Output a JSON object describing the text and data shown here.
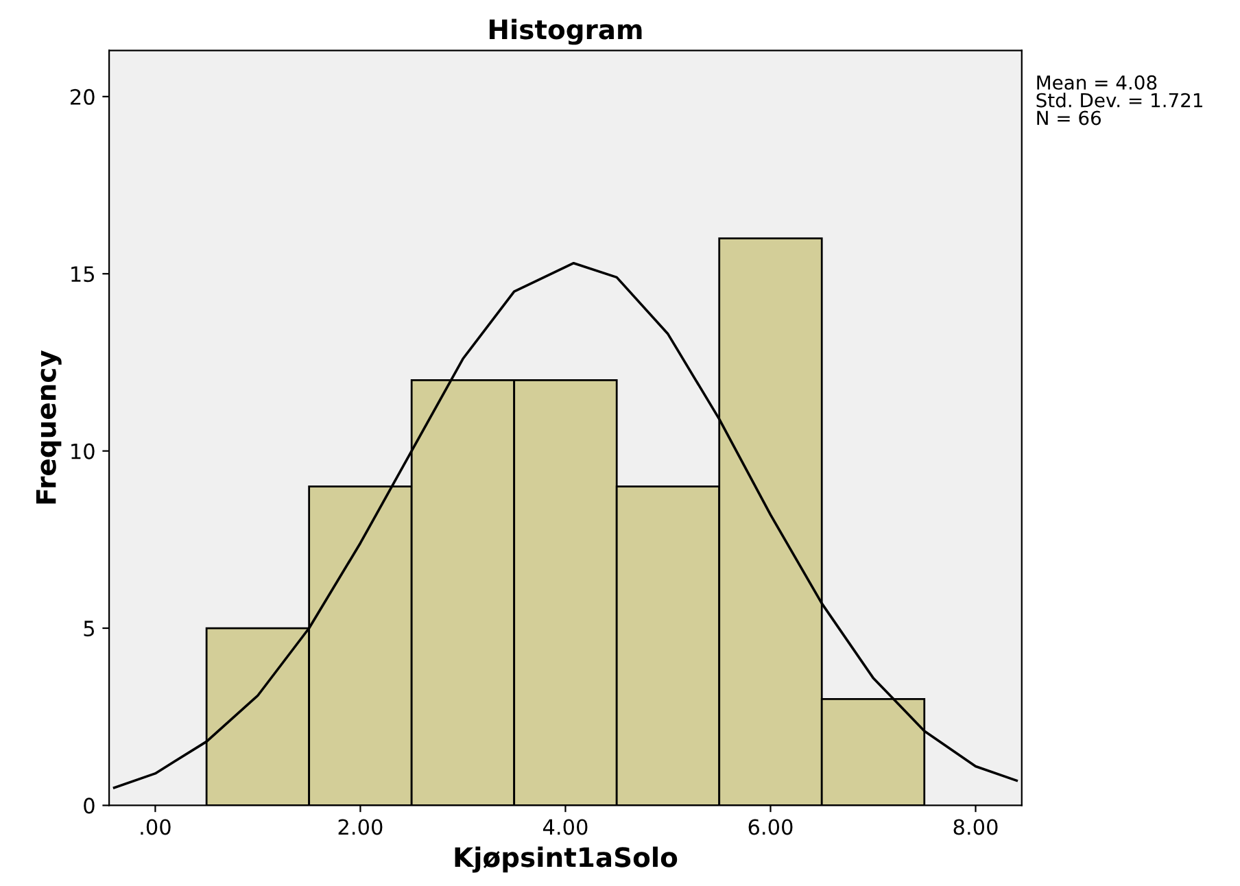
{
  "chart_data": {
    "type": "histogram",
    "title": "Histogram",
    "xlabel": "Kjøpsint1aSolo",
    "ylabel": "Frequency",
    "series": [
      {
        "type": "histogram",
        "bins": [
          0.5,
          1.5,
          2.5,
          3.5,
          4.5,
          5.5,
          6.5,
          7.5
        ],
        "values": [
          5,
          9,
          12,
          12,
          9,
          16,
          3
        ],
        "color": "#d3ce98"
      },
      {
        "type": "line",
        "x": [
          -0.4,
          0,
          0.5,
          1,
          1.5,
          2,
          2.5,
          3,
          3.5,
          4.08,
          4.5,
          5,
          5.5,
          6,
          6.5,
          7,
          7.5,
          8,
          8.4
        ],
        "values": [
          0.5,
          0.9,
          1.8,
          3.1,
          5,
          7.4,
          10,
          12.6,
          14.5,
          15.3,
          14.9,
          13.3,
          10.9,
          8.2,
          5.7,
          3.6,
          2.1,
          1.1,
          0.7
        ],
        "color": "#000000"
      }
    ],
    "xlim": [
      -0.45,
      8.45
    ],
    "xticks": [
      {
        "value": 0,
        "label": ".00"
      },
      {
        "value": 2,
        "label": "2.00"
      },
      {
        "value": 4,
        "label": "4.00"
      },
      {
        "value": 6,
        "label": "6.00"
      },
      {
        "value": 8,
        "label": "8.00"
      }
    ],
    "ylim": [
      0,
      21.3
    ],
    "yticks": [
      0,
      5,
      10,
      15,
      20
    ],
    "grid": false,
    "legend": false,
    "annotations": [
      "Mean = 4.08",
      "Std. Dev. = 1.721",
      "N = 66"
    ]
  }
}
